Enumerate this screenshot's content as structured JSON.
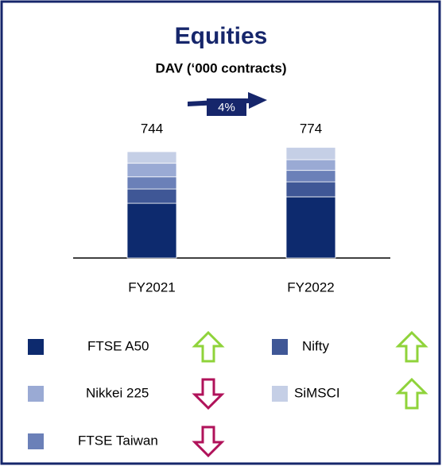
{
  "chart_data": {
    "type": "stacked_bar",
    "title": "Equities",
    "subtitle": "DAV (‘000 contracts)",
    "categories": [
      "FY2021",
      "FY2022"
    ],
    "totals": [
      744,
      774
    ],
    "annotation": "4%",
    "ylim": [
      0,
      800
    ],
    "series": [
      {
        "name": "FTSE A50",
        "color": "#0d2a6e",
        "trend": "up",
        "values": [
          383,
          428
        ]
      },
      {
        "name": "Nifty",
        "color": "#3f5796",
        "trend": "up",
        "values": [
          100,
          105
        ]
      },
      {
        "name": "FTSE Taiwan",
        "color": "#6b80b8",
        "trend": "down",
        "values": [
          85,
          80
        ]
      },
      {
        "name": "Nikkei 225",
        "color": "#9aaad4",
        "trend": "down",
        "values": [
          95,
          75
        ]
      },
      {
        "name": "SiMSCI",
        "color": "#c5cfe6",
        "trend": "up",
        "values": [
          81,
          86
        ]
      }
    ]
  }
}
